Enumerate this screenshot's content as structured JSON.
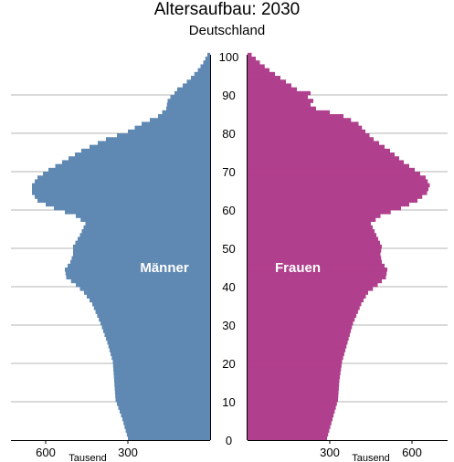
{
  "chart_data": {
    "type": "bar",
    "orientation": "horizontal-pyramid",
    "title": "Altersaufbau: 2030",
    "subtitle": "Deutschland",
    "unit_label": "Tausend",
    "ages": {
      "min": 0,
      "max": 100,
      "ticks": [
        0,
        10,
        20,
        30,
        40,
        50,
        60,
        70,
        80,
        90,
        100
      ]
    },
    "x_ticks": {
      "left": [
        "600",
        "300"
      ],
      "right": [
        "300",
        "600"
      ]
    },
    "xlim": [
      0,
      720
    ],
    "grid": true,
    "series": [
      {
        "name": "Männer",
        "color": "#5f89b3",
        "points": [
          [
            0,
            300
          ],
          [
            5,
            320
          ],
          [
            10,
            345
          ],
          [
            15,
            350
          ],
          [
            20,
            355
          ],
          [
            25,
            375
          ],
          [
            30,
            400
          ],
          [
            35,
            430
          ],
          [
            38,
            460
          ],
          [
            40,
            490
          ],
          [
            42,
            525
          ],
          [
            44,
            530
          ],
          [
            46,
            510
          ],
          [
            48,
            500
          ],
          [
            50,
            500
          ],
          [
            53,
            475
          ],
          [
            56,
            455
          ],
          [
            58,
            490
          ],
          [
            60,
            570
          ],
          [
            62,
            630
          ],
          [
            64,
            650
          ],
          [
            66,
            650
          ],
          [
            68,
            630
          ],
          [
            70,
            590
          ],
          [
            72,
            540
          ],
          [
            75,
            470
          ],
          [
            78,
            380
          ],
          [
            80,
            300
          ],
          [
            82,
            250
          ],
          [
            84,
            190
          ],
          [
            86,
            160
          ],
          [
            88,
            155
          ],
          [
            89,
            145
          ],
          [
            90,
            130
          ],
          [
            91,
            120
          ],
          [
            92,
            100
          ],
          [
            94,
            70
          ],
          [
            96,
            45
          ],
          [
            98,
            25
          ],
          [
            100,
            10
          ]
        ]
      },
      {
        "name": "Frauen",
        "color": "#b03f8d",
        "points": [
          [
            0,
            290
          ],
          [
            5,
            310
          ],
          [
            10,
            330
          ],
          [
            15,
            335
          ],
          [
            20,
            345
          ],
          [
            25,
            365
          ],
          [
            30,
            385
          ],
          [
            35,
            415
          ],
          [
            38,
            440
          ],
          [
            40,
            475
          ],
          [
            42,
            505
          ],
          [
            44,
            510
          ],
          [
            46,
            490
          ],
          [
            48,
            485
          ],
          [
            50,
            490
          ],
          [
            53,
            470
          ],
          [
            56,
            450
          ],
          [
            58,
            485
          ],
          [
            60,
            560
          ],
          [
            62,
            620
          ],
          [
            64,
            655
          ],
          [
            66,
            665
          ],
          [
            68,
            650
          ],
          [
            70,
            610
          ],
          [
            72,
            570
          ],
          [
            75,
            520
          ],
          [
            78,
            460
          ],
          [
            80,
            430
          ],
          [
            82,
            405
          ],
          [
            84,
            350
          ],
          [
            86,
            250
          ],
          [
            87,
            230
          ],
          [
            88,
            240
          ],
          [
            89,
            220
          ],
          [
            90,
            230
          ],
          [
            91,
            180
          ],
          [
            92,
            160
          ],
          [
            94,
            120
          ],
          [
            96,
            80
          ],
          [
            98,
            45
          ],
          [
            100,
            15
          ]
        ]
      }
    ]
  }
}
